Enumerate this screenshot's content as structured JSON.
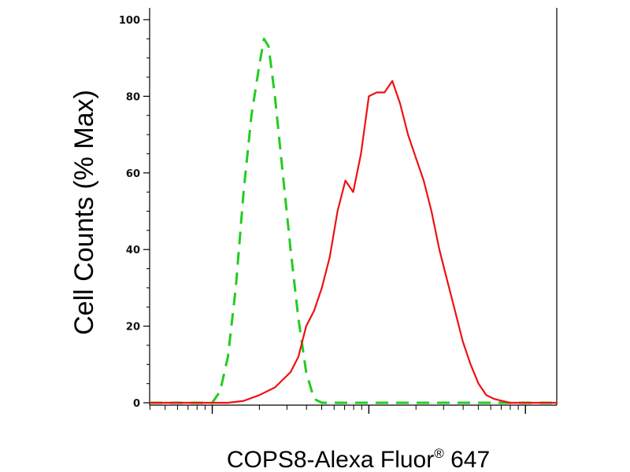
{
  "chart_data": {
    "type": "line",
    "xlabel": "COPS8-Alexa Fluor",
    "xlabel_superscript": "®",
    "xlabel_suffix": " 647",
    "ylabel": "Cell Counts (% Max)",
    "xscale": "log",
    "xlim": [
      0.6,
      3.2
    ],
    "ylim": [
      0,
      100
    ],
    "yticks": [
      0,
      20,
      40,
      60,
      80,
      100
    ],
    "ytick_labels": [
      "0",
      "20",
      "40",
      "60",
      "80",
      "100"
    ],
    "grid": false,
    "legend": "none",
    "series": [
      {
        "color": "#22cc22",
        "style": "dashed",
        "x": [
          0.6,
          0.8,
          0.9,
          1.0,
          1.05,
          1.1,
          1.15,
          1.2,
          1.25,
          1.3,
          1.33,
          1.36,
          1.4,
          1.45,
          1.5,
          1.55,
          1.6,
          1.65,
          1.7,
          1.8,
          2.0,
          2.5,
          3.0,
          3.2
        ],
        "y": [
          0,
          0,
          0,
          0,
          3,
          12,
          30,
          55,
          75,
          88,
          95,
          93,
          80,
          60,
          40,
          22,
          8,
          1,
          0,
          0,
          0,
          0,
          0,
          0
        ]
      },
      {
        "color": "#ee1111",
        "style": "solid",
        "x": [
          0.6,
          1.1,
          1.2,
          1.3,
          1.4,
          1.5,
          1.55,
          1.6,
          1.65,
          1.7,
          1.75,
          1.8,
          1.85,
          1.9,
          1.95,
          2.0,
          2.05,
          2.1,
          2.15,
          2.2,
          2.25,
          2.3,
          2.35,
          2.4,
          2.45,
          2.5,
          2.55,
          2.6,
          2.65,
          2.7,
          2.75,
          2.8,
          2.85,
          2.9,
          3.0,
          3.2
        ],
        "y": [
          0,
          0,
          0.5,
          2,
          4,
          8,
          12,
          20,
          24,
          30,
          38,
          50,
          58,
          55,
          65,
          80,
          81,
          81,
          84,
          78,
          70,
          64,
          58,
          50,
          40,
          32,
          24,
          16,
          10,
          5,
          2,
          1,
          0.5,
          0,
          0,
          0
        ]
      }
    ]
  }
}
